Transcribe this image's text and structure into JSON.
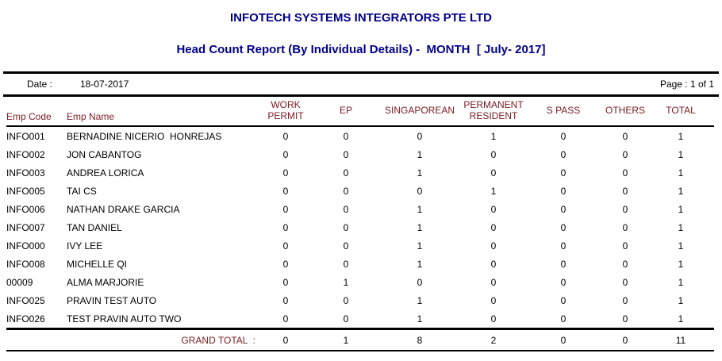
{
  "report": {
    "company_title": "INFOTECH SYSTEMS INTEGRATORS PTE LTD",
    "report_title": "Head Count Report (By Individual Details) -  MONTH  [ July- 2017]",
    "date_label": "Date :",
    "date_value": "18-07-2017",
    "page_label": "Page : 1 of 1"
  },
  "colors": {
    "title_navy": "#00008B",
    "header_maroon": "#7A1B22",
    "line_black": "#000000",
    "background": "#FFFFFF"
  },
  "table": {
    "columns": [
      "Emp Code",
      "Emp Name",
      "WORK PERMIT",
      "EP",
      "SINGAPOREAN",
      "PERMANENT RESIDENT",
      "S PASS",
      "OTHERS",
      "TOTAL"
    ],
    "rows": [
      {
        "code": "INFO001",
        "name": "BERNADINE NICERIO  HONREJAS",
        "values": [
          0,
          0,
          0,
          1,
          0,
          0,
          1
        ]
      },
      {
        "code": "INFO002",
        "name": "JON CABANTOG",
        "values": [
          0,
          0,
          1,
          0,
          0,
          0,
          1
        ]
      },
      {
        "code": "INFO003",
        "name": "ANDREA LORICA",
        "values": [
          0,
          0,
          1,
          0,
          0,
          0,
          1
        ]
      },
      {
        "code": "INFO005",
        "name": "TAI CS",
        "values": [
          0,
          0,
          0,
          1,
          0,
          0,
          1
        ]
      },
      {
        "code": "INFO006",
        "name": "NATHAN DRAKE GARCIA",
        "values": [
          0,
          0,
          1,
          0,
          0,
          0,
          1
        ]
      },
      {
        "code": "INFO007",
        "name": "TAN DANIEL",
        "values": [
          0,
          0,
          1,
          0,
          0,
          0,
          1
        ]
      },
      {
        "code": "INFO000",
        "name": "IVY LEE",
        "values": [
          0,
          0,
          1,
          0,
          0,
          0,
          1
        ]
      },
      {
        "code": "INFO008",
        "name": "MICHELLE QI",
        "values": [
          0,
          0,
          1,
          0,
          0,
          0,
          1
        ]
      },
      {
        "code": "00009",
        "name": "ALMA MARJORIE",
        "values": [
          0,
          1,
          0,
          0,
          0,
          0,
          1
        ]
      },
      {
        "code": "INFO025",
        "name": "PRAVIN TEST AUTO",
        "values": [
          0,
          0,
          1,
          0,
          0,
          0,
          1
        ]
      },
      {
        "code": "INFO026",
        "name": "TEST PRAVIN AUTO TWO",
        "values": [
          0,
          0,
          1,
          0,
          0,
          0,
          1
        ]
      }
    ],
    "grand_total": {
      "label": "GRAND TOTAL  :",
      "values": [
        0,
        1,
        8,
        2,
        0,
        0,
        11
      ]
    }
  }
}
